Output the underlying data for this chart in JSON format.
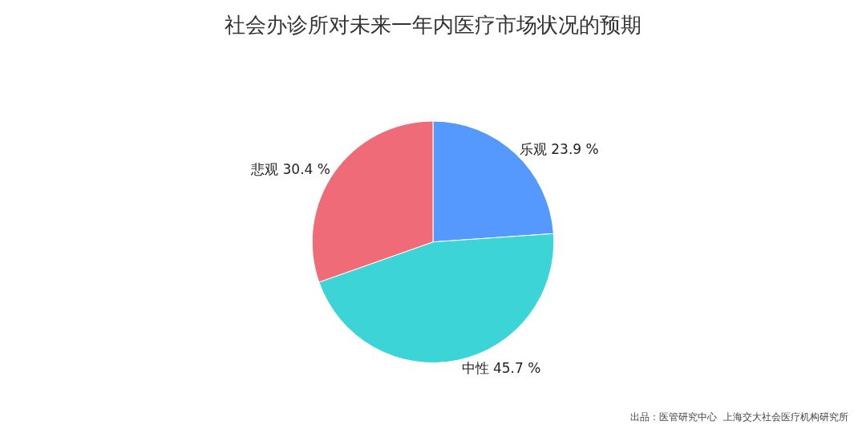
{
  "chart_data": {
    "type": "pie",
    "title": "社会办诊所对未来一年内医疗市场状况的预期",
    "categories": [
      "乐观",
      "中性",
      "悲观"
    ],
    "values": [
      23.9,
      45.7,
      30.4
    ],
    "value_labels": [
      "23.9 %",
      "45.7 %",
      "30.4 %"
    ],
    "colors": [
      "#5599ff",
      "#3dd4d8",
      "#f06b78"
    ],
    "legend": false,
    "annotations": [
      "出品：医管研究中心  上海交大社会医疗机构研究所"
    ]
  }
}
